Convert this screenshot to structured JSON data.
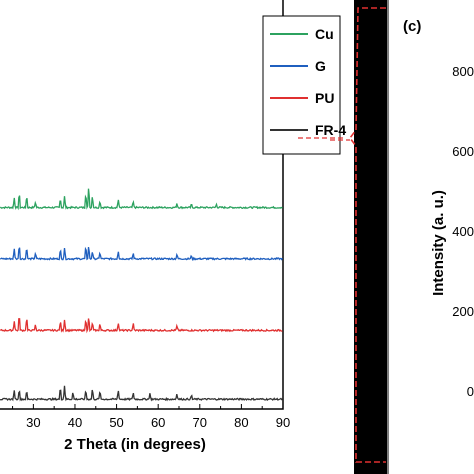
{
  "chart_data": [
    {
      "type": "line",
      "xlabel": "2 Theta (in degrees)",
      "xlim": [
        5,
        90
      ],
      "x_ticks": [
        30,
        40,
        50,
        60,
        70,
        80,
        90
      ],
      "legend_position": "top-right",
      "grid": false,
      "series": [
        {
          "name": "Cu",
          "color": "#2ca25f",
          "baseline": 0.71,
          "peaks": [
            [
              25.4,
              0.35
            ],
            [
              26.6,
              0.55
            ],
            [
              28.4,
              0.45
            ],
            [
              30.5,
              0.2
            ],
            [
              36.5,
              0.35
            ],
            [
              37.5,
              0.4
            ],
            [
              42.6,
              0.55
            ],
            [
              43.3,
              0.8
            ],
            [
              44.2,
              0.45
            ],
            [
              46,
              0.25
            ],
            [
              50.4,
              0.3
            ],
            [
              54,
              0.2
            ],
            [
              64.5,
              0.15
            ],
            [
              68,
              0.12
            ],
            [
              74,
              0.12
            ]
          ]
        },
        {
          "name": "G",
          "color": "#1f5fbf",
          "baseline": 0.52,
          "peaks": [
            [
              25.4,
              0.35
            ],
            [
              26.6,
              0.55
            ],
            [
              28.4,
              0.45
            ],
            [
              30.5,
              0.2
            ],
            [
              36.5,
              0.35
            ],
            [
              37.5,
              0.4
            ],
            [
              42.6,
              0.45
            ],
            [
              43.3,
              0.5
            ],
            [
              44.2,
              0.3
            ],
            [
              46,
              0.25
            ],
            [
              50.4,
              0.3
            ],
            [
              54,
              0.2
            ],
            [
              64.5,
              0.15
            ],
            [
              68,
              0.12
            ]
          ]
        },
        {
          "name": "PU",
          "color": "#e03030",
          "baseline": 0.255,
          "peaks": [
            [
              25.4,
              0.35
            ],
            [
              26.6,
              0.6
            ],
            [
              28.4,
              0.5
            ],
            [
              30.5,
              0.2
            ],
            [
              36.5,
              0.35
            ],
            [
              37.5,
              0.4
            ],
            [
              42.6,
              0.45
            ],
            [
              43.3,
              0.5
            ],
            [
              44.2,
              0.3
            ],
            [
              46,
              0.25
            ],
            [
              50.4,
              0.3
            ],
            [
              54,
              0.25
            ],
            [
              64.5,
              0.15
            ]
          ]
        },
        {
          "name": "FR-4",
          "color": "#333333",
          "baseline": 0.0,
          "peaks": [
            [
              25.4,
              0.3
            ],
            [
              26.6,
              0.4
            ],
            [
              28.4,
              0.3
            ],
            [
              36.5,
              0.45
            ],
            [
              37.5,
              0.5
            ],
            [
              39.5,
              0.25
            ],
            [
              42.6,
              0.35
            ],
            [
              44.2,
              0.4
            ],
            [
              46,
              0.3
            ],
            [
              50.4,
              0.35
            ],
            [
              54,
              0.25
            ],
            [
              58,
              0.2
            ],
            [
              64.5,
              0.2
            ],
            [
              68,
              0.15
            ]
          ]
        }
      ]
    },
    {
      "type": "line",
      "panel_label": "(c)",
      "ylabel": "Intensity (a. u.)",
      "y_tick_labels": [
        "800",
        "600",
        "400",
        "200",
        "0"
      ]
    }
  ]
}
